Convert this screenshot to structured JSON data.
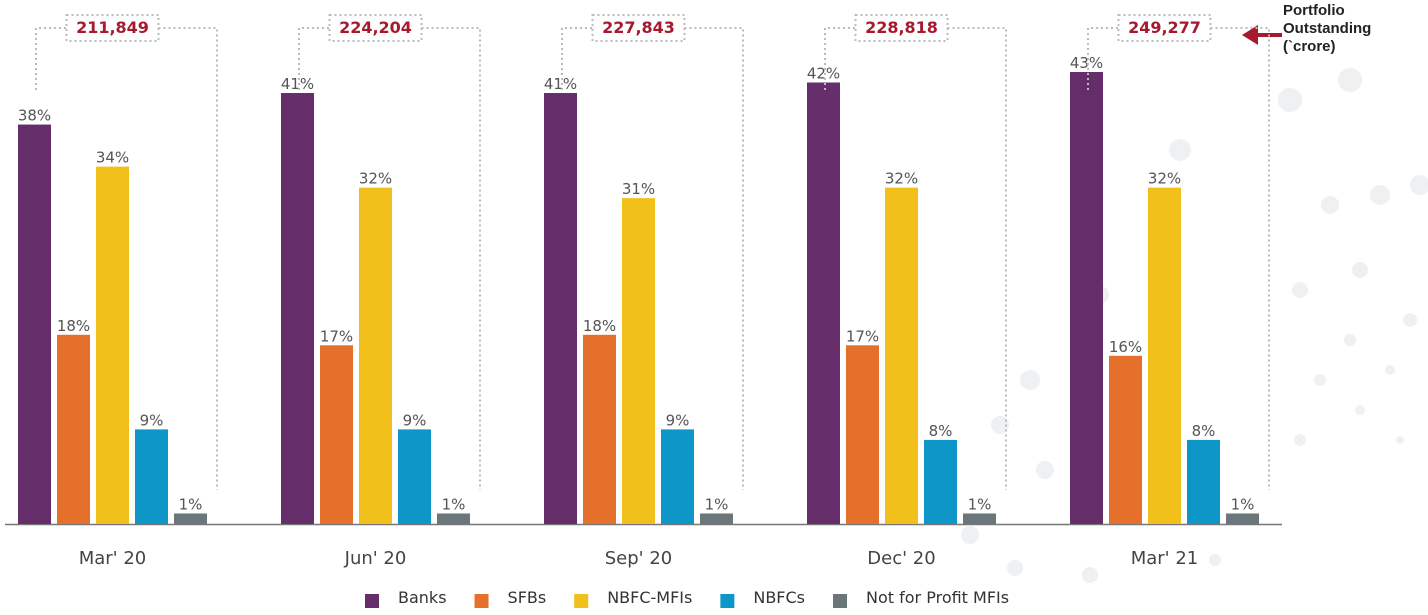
{
  "chart_data": {
    "type": "bar",
    "categories": [
      "Mar' 20",
      "Jun' 20",
      "Sep' 20",
      "Dec' 20",
      "Mar' 21"
    ],
    "series": [
      {
        "name": "Banks",
        "color": "#652d69",
        "values": [
          38,
          41,
          41,
          42,
          43
        ],
        "value_labels": [
          "38%",
          "41%",
          "41%",
          "42%",
          "43%"
        ]
      },
      {
        "name": "SFBs",
        "color": "#e5702b",
        "values": [
          18,
          17,
          18,
          17,
          16
        ],
        "value_labels": [
          "18%",
          "17%",
          "18%",
          "17%",
          "16%"
        ]
      },
      {
        "name": "NBFC-MFIs",
        "color": "#f2c01b",
        "values": [
          34,
          32,
          31,
          32,
          32
        ],
        "value_labels": [
          "34%",
          "32%",
          "31%",
          "32%",
          "32%"
        ]
      },
      {
        "name": "NBFCs",
        "color": "#0f96c9",
        "values": [
          9,
          9,
          9,
          8,
          8
        ],
        "value_labels": [
          "9%",
          "9%",
          "9%",
          "8%",
          "8%"
        ]
      },
      {
        "name": "Not for Profit MFIs",
        "color": "#6b767a",
        "values": [
          1,
          1,
          1,
          1,
          1
        ],
        "value_labels": [
          "1%",
          "1%",
          "1%",
          "1%",
          "1%"
        ]
      }
    ],
    "portfolio_outstanding": {
      "label": "Portfolio Outstanding (`crore)",
      "values": [
        211849,
        224204,
        227843,
        228818,
        249277
      ],
      "value_labels": [
        "211,849",
        "224,204",
        "227,843",
        "228,818",
        "249,277"
      ]
    },
    "legend": "bottom"
  }
}
